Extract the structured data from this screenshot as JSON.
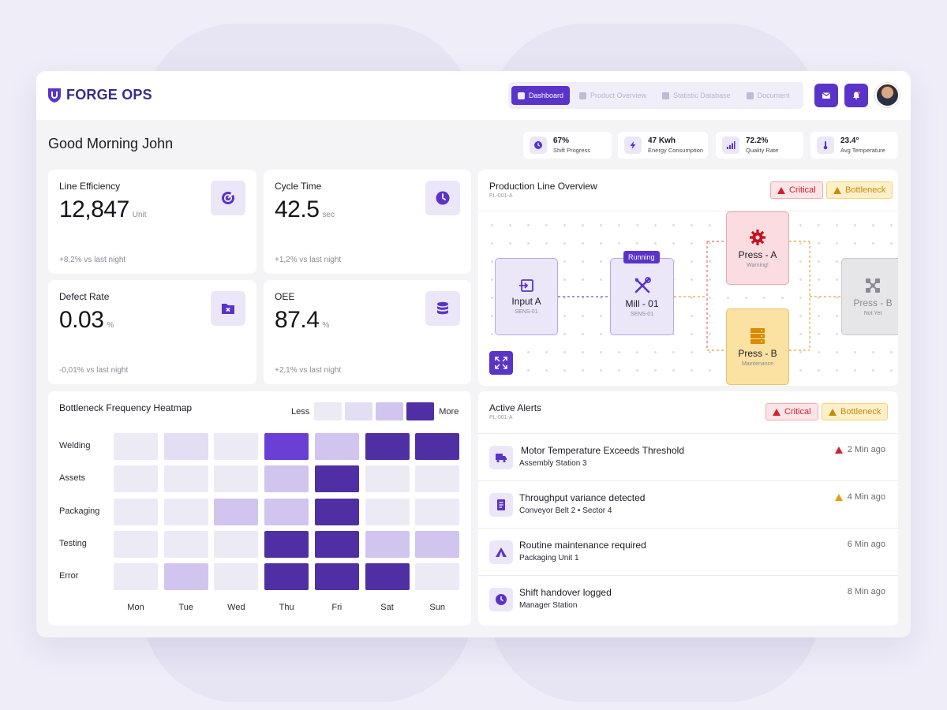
{
  "header": {
    "brand": "FORGE OPS",
    "nav": [
      {
        "label": "Dashboard",
        "active": true
      },
      {
        "label": "Product Overview",
        "active": false
      },
      {
        "label": "Statistic Database",
        "active": false
      },
      {
        "label": "Document",
        "active": false
      }
    ]
  },
  "greeting": "Good Morning John",
  "kpis": [
    {
      "value": "67%",
      "label": "Shift Progress",
      "icon": "clock-icon"
    },
    {
      "value": "47 Kwh",
      "label": "Energy Consumption",
      "icon": "bolt-icon"
    },
    {
      "value": "72.2%",
      "label": "Quality Rate",
      "icon": "bar-chart-icon"
    },
    {
      "value": "23.4°",
      "label": "Avg Temperature",
      "icon": "thermometer-icon"
    }
  ],
  "metrics": {
    "line_efficiency": {
      "title": "Line Efficiency",
      "value": "12,847",
      "unit": "Unit",
      "delta": "+8,2% vs last night",
      "icon": "gauge-icon"
    },
    "cycle_time": {
      "title": "Cycle Time",
      "value": "42.5",
      "unit": "sec",
      "delta": "+1,2% vs last night",
      "icon": "clock-icon"
    },
    "defect_rate": {
      "title": "Defect Rate",
      "value": "0.03",
      "unit": "%",
      "delta": "-0,01% vs last night",
      "icon": "folder-x-icon"
    },
    "oee": {
      "title": "OEE",
      "value": "87.4",
      "unit": "%",
      "delta": "+2,1% vs last night",
      "icon": "database-icon"
    }
  },
  "production": {
    "title": "Production Line Overview",
    "subtitle": "PL-001-A",
    "critical_label": "Critical",
    "bottleneck_label": "Bottleneck",
    "nodes": {
      "input_a": {
        "title": "Input A",
        "sub": "SENS-01",
        "icon": "input-icon"
      },
      "mill_01": {
        "title": "Mill - 01",
        "sub": "SENS-01",
        "badge": "Running",
        "icon": "tools-icon"
      },
      "press_a": {
        "title": "Press - A",
        "sub": "Warning!",
        "icon": "gear-icon"
      },
      "press_b_maint": {
        "title": "Press - B",
        "sub": "Maintenance",
        "icon": "server-icon"
      },
      "press_b_grey": {
        "title": "Press - B",
        "sub": "Not Yet",
        "icon": "nodes-icon"
      }
    }
  },
  "heatmap": {
    "title": "Bottleneck Frequency Heatmap",
    "legend_less": "Less",
    "legend_more": "More",
    "colors": [
      "#ecebf5",
      "#e3def4",
      "#d1c5ef",
      "#4f2fa3",
      "#6a3fd6"
    ],
    "rows": [
      "Welding",
      "Assets",
      "Packaging",
      "Testing",
      "Error"
    ],
    "days": [
      "Mon",
      "Tue",
      "Wed",
      "Thu",
      "Fri",
      "Sat",
      "Sun"
    ],
    "levels": [
      [
        0,
        1,
        0,
        4,
        2,
        3,
        3
      ],
      [
        0,
        0,
        0,
        2,
        3,
        0,
        0
      ],
      [
        0,
        0,
        2,
        2,
        3,
        0,
        0
      ],
      [
        0,
        0,
        0,
        3,
        3,
        2,
        2
      ],
      [
        0,
        2,
        0,
        3,
        3,
        3,
        0
      ]
    ]
  },
  "alerts": {
    "title": "Active Alerts",
    "subtitle": "PL-001-A",
    "critical_label": "Critical",
    "bottleneck_label": "Bottleneck",
    "items": [
      {
        "title": "Motor Temperature Exceeds Threshold",
        "sub": "Assembly Station 3",
        "time": "2 Min ago",
        "severity": "critical",
        "icon": "truck-icon"
      },
      {
        "title": "Throughput variance detected",
        "sub": "Conveyor Belt 2 • Sector 4",
        "time": "4 Min ago",
        "severity": "warning",
        "icon": "document-icon"
      },
      {
        "title": "Routine maintenance required",
        "sub": "Packaging Unit 1",
        "time": "6 Min ago",
        "severity": "none",
        "icon": "tent-icon"
      },
      {
        "title": "Shift handover logged",
        "sub": "Manager Station",
        "time": "8 Min ago",
        "severity": "none",
        "icon": "clock-icon"
      }
    ]
  },
  "colors": {
    "accent": "#5a33c9",
    "critical": "#d1212f",
    "warning": "#e0a10c"
  }
}
